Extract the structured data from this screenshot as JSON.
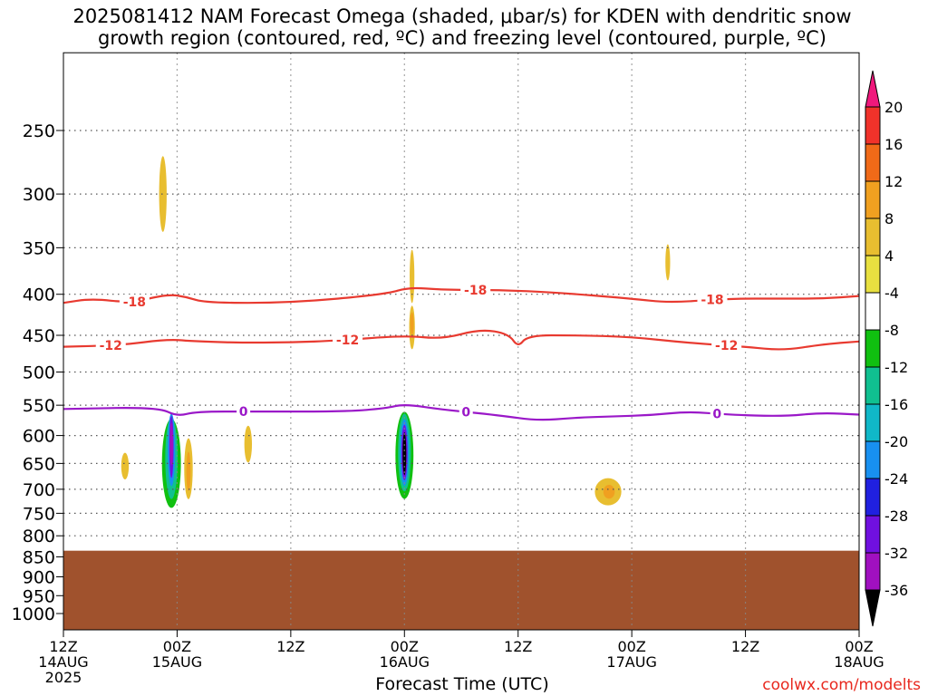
{
  "title": {
    "line1": "2025081412 NAM Forecast Omega (shaded, μbar/s) for KDEN with dendritic snow",
    "line2": "growth region (contoured, red, ºC) and freezing level (contoured, purple, ºC)"
  },
  "credit": "coolwx.com/modelts",
  "chart_data": {
    "type": "heatmap",
    "xlabel": "Forecast Time (UTC)",
    "x_ticks": [
      {
        "hours": 0,
        "line1": "12Z",
        "line2": "14AUG",
        "line3": "2025"
      },
      {
        "hours": 12,
        "line1": "00Z",
        "line2": "15AUG"
      },
      {
        "hours": 24,
        "line1": "12Z"
      },
      {
        "hours": 36,
        "line1": "00Z",
        "line2": "16AUG"
      },
      {
        "hours": 48,
        "line1": "12Z"
      },
      {
        "hours": 60,
        "line1": "00Z",
        "line2": "17AUG"
      },
      {
        "hours": 72,
        "line1": "12Z"
      },
      {
        "hours": 84,
        "line1": "00Z",
        "line2": "18AUG"
      }
    ],
    "x_range_hours": [
      0,
      84
    ],
    "y_ticks": [
      250,
      300,
      350,
      400,
      450,
      500,
      550,
      600,
      650,
      700,
      750,
      800,
      850,
      900,
      950,
      1000
    ],
    "y_range_mb": [
      200,
      1050
    ],
    "grid": "dotted",
    "ground_pressure_mb": 835,
    "ground_color": "#a0522d",
    "colorbar": {
      "labels": [
        "20",
        "16",
        "12",
        "8",
        "4",
        "-4",
        "-8",
        "-12",
        "-16",
        "-20",
        "-24",
        "-28",
        "-32",
        "-36"
      ],
      "colors": [
        "#f0187c",
        "#f0322a",
        "#f06a18",
        "#f0a020",
        "#e8be30",
        "#e8e040",
        "#ffffff",
        "#10c010",
        "#10c090",
        "#10b8c8",
        "#1890f0",
        "#2020e0",
        "#7010e0",
        "#a010c0",
        "#a0a0a0",
        "#000000"
      ]
    },
    "omega_regions": [
      {
        "t": 10.5,
        "p": 300,
        "dt": 0.8,
        "dp": 65,
        "value": 6
      },
      {
        "t": 8.8,
        "p": 415,
        "dt": 0.9,
        "dp": 42,
        "value": -6
      },
      {
        "t": 11.8,
        "p": 640,
        "dt": 2.8,
        "dp": 180,
        "value": -6
      },
      {
        "t": 11.4,
        "p": 650,
        "dt": 2.0,
        "dp": 165,
        "value": -10
      },
      {
        "t": 11.4,
        "p": 640,
        "dt": 1.3,
        "dp": 150,
        "value": -15
      },
      {
        "t": 11.4,
        "p": 625,
        "dt": 0.8,
        "dp": 130,
        "value": -22
      },
      {
        "t": 11.4,
        "p": 620,
        "dt": 0.45,
        "dp": 110,
        "value": -29
      },
      {
        "t": 11.4,
        "p": 615,
        "dt": 0.18,
        "dp": 75,
        "value": -33
      },
      {
        "t": 6.5,
        "p": 655,
        "dt": 0.8,
        "dp": 50,
        "value": 6
      },
      {
        "t": 13.2,
        "p": 660,
        "dt": 0.9,
        "dp": 115,
        "value": 6
      },
      {
        "t": 13.2,
        "p": 665,
        "dt": 0.45,
        "dp": 75,
        "value": 10
      },
      {
        "t": 15.2,
        "p": 655,
        "dt": 0.5,
        "dp": 38,
        "value": -6
      },
      {
        "t": 19.5,
        "p": 615,
        "dt": 0.8,
        "dp": 65,
        "value": 6
      },
      {
        "t": 36.8,
        "p": 380,
        "dt": 0.5,
        "dp": 58,
        "value": 6
      },
      {
        "t": 36.8,
        "p": 440,
        "dt": 0.6,
        "dp": 55,
        "value": 6
      },
      {
        "t": 36.8,
        "p": 435,
        "dt": 0.25,
        "dp": 28,
        "value": 10
      },
      {
        "t": 36.0,
        "p": 640,
        "dt": 2.5,
        "dp": 180,
        "value": -6
      },
      {
        "t": 36.0,
        "p": 635,
        "dt": 1.9,
        "dp": 158,
        "value": -10
      },
      {
        "t": 36.0,
        "p": 630,
        "dt": 1.35,
        "dp": 140,
        "value": -15
      },
      {
        "t": 36.0,
        "p": 630,
        "dt": 0.95,
        "dp": 120,
        "value": -22
      },
      {
        "t": 36.0,
        "p": 630,
        "dt": 0.65,
        "dp": 100,
        "value": -29
      },
      {
        "t": 36.0,
        "p": 632,
        "dt": 0.38,
        "dp": 78,
        "value": -38
      },
      {
        "t": 39.2,
        "p": 770,
        "dt": 0.7,
        "dp": 30,
        "value": -6
      },
      {
        "t": 42.4,
        "p": 285,
        "dt": 0.4,
        "dp": 38,
        "value": -6
      },
      {
        "t": 57.5,
        "p": 705,
        "dt": 2.8,
        "dp": 55,
        "value": 6
      },
      {
        "t": 57.6,
        "p": 705,
        "dt": 1.2,
        "dp": 28,
        "value": 10
      },
      {
        "t": 63.8,
        "p": 365,
        "dt": 0.5,
        "dp": 38,
        "value": 6
      },
      {
        "t": 83.9,
        "p": 700,
        "dt": 0.3,
        "dp": 40,
        "value": -6
      }
    ],
    "contours": [
      {
        "label": "-18",
        "color": "#e83a30",
        "label_at": [
          7.5,
          43.5,
          68.5
        ],
        "points": [
          [
            0,
            410
          ],
          [
            3,
            405
          ],
          [
            7,
            410
          ],
          [
            11,
            400
          ],
          [
            13,
            403
          ],
          [
            15,
            410
          ],
          [
            24,
            410
          ],
          [
            34,
            400
          ],
          [
            36.5,
            392
          ],
          [
            40,
            395
          ],
          [
            46,
            395
          ],
          [
            52,
            398
          ],
          [
            60,
            405
          ],
          [
            64,
            410
          ],
          [
            70,
            405
          ],
          [
            76,
            405
          ],
          [
            80,
            405
          ],
          [
            84,
            402
          ]
        ]
      },
      {
        "label": "-12",
        "color": "#e83a30",
        "label_at": [
          5,
          30,
          70
        ],
        "points": [
          [
            0,
            465
          ],
          [
            6,
            463
          ],
          [
            11,
            455
          ],
          [
            14,
            458
          ],
          [
            20,
            460
          ],
          [
            28,
            458
          ],
          [
            36,
            450
          ],
          [
            40,
            455
          ],
          [
            44,
            442
          ],
          [
            47,
            448
          ],
          [
            48,
            466
          ],
          [
            49,
            450
          ],
          [
            54,
            450
          ],
          [
            60,
            452
          ],
          [
            66,
            460
          ],
          [
            72,
            465
          ],
          [
            76,
            470
          ],
          [
            80,
            462
          ],
          [
            84,
            458
          ]
        ]
      },
      {
        "label": "0",
        "color": "#9a18c8",
        "label_at": [
          19,
          42.5,
          69
        ],
        "points": [
          [
            0,
            556
          ],
          [
            10,
            553
          ],
          [
            12,
            568
          ],
          [
            14,
            560
          ],
          [
            20,
            560
          ],
          [
            30,
            560
          ],
          [
            34,
            555
          ],
          [
            36,
            548
          ],
          [
            40,
            557
          ],
          [
            46,
            566
          ],
          [
            50,
            575
          ],
          [
            54,
            570
          ],
          [
            58,
            568
          ],
          [
            62,
            566
          ],
          [
            66,
            560
          ],
          [
            70,
            565
          ],
          [
            76,
            568
          ],
          [
            80,
            562
          ],
          [
            84,
            565
          ]
        ]
      }
    ]
  }
}
